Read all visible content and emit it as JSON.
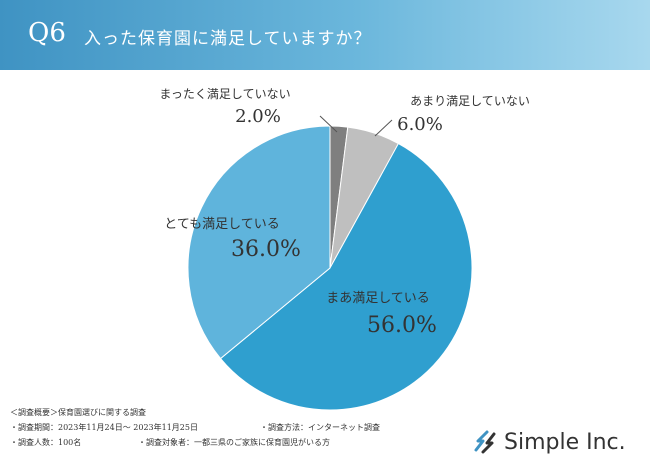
{
  "header": {
    "question_no": "Q6",
    "question": "入った保育園に満足していますか？"
  },
  "chart_data": {
    "type": "pie",
    "title": "入った保育園に満足していますか？",
    "start_angle_deg": 0,
    "direction": "clockwise",
    "slices": [
      {
        "label": "まったく満足していない",
        "value": 2.0,
        "display": "2.0%",
        "color": "#7f7f7f"
      },
      {
        "label": "あまり満足していない",
        "value": 6.0,
        "display": "6.0%",
        "color": "#bfbfbf"
      },
      {
        "label": "まあ満足している",
        "value": 56.0,
        "display": "56.0%",
        "color": "#2f9fcf"
      },
      {
        "label": "とても満足している",
        "value": 36.0,
        "display": "36.0%",
        "color": "#5fb4dc"
      }
    ]
  },
  "footer": {
    "summary": "＜調査概要＞保育園選びに関する調査",
    "period": "・調査期間：2023年11月24日～ 2023年11月25日",
    "method": "・調査方法：インターネット調査",
    "count": "・調査人数：100名",
    "target": "・調査対象者：一都三県のご家族に保育園児がいる方"
  },
  "logo": {
    "name": "Simple Inc."
  }
}
